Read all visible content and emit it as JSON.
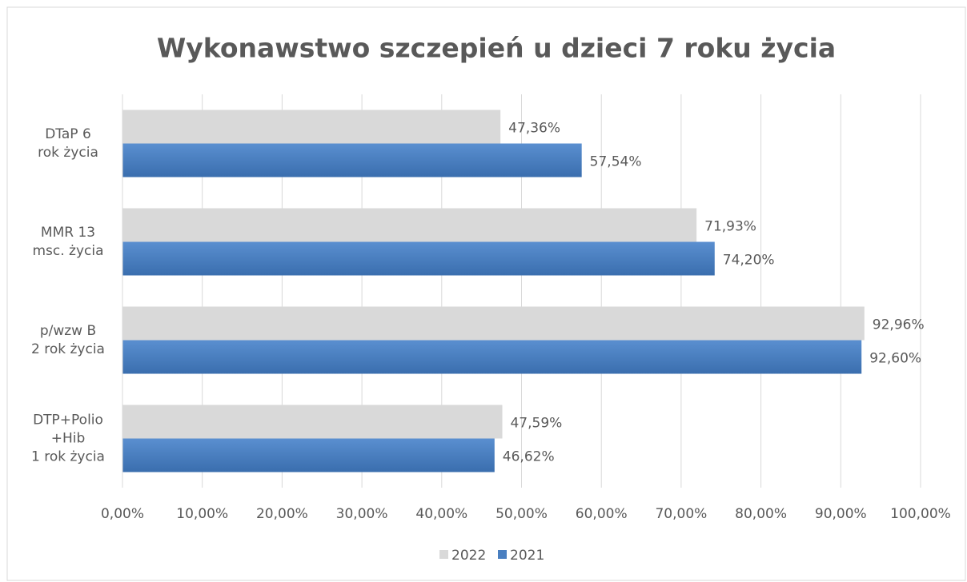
{
  "chart_data": {
    "type": "bar",
    "orientation": "horizontal",
    "title": "Wykonawstwo szczepień u dzieci 7 roku życia",
    "categories": [
      "DTaP 6\nrok życia",
      "MMR 13\nmsc. życia",
      "p/wzw B\n2 rok życia",
      "DTP+Polio\n+Hib\n1 rok życia"
    ],
    "series": [
      {
        "name": "2022",
        "color": "#d9d9d9",
        "values": [
          47.36,
          71.93,
          92.96,
          47.59
        ],
        "value_labels": [
          "47,36%",
          "71,93%",
          "92,96%",
          "47,59%"
        ]
      },
      {
        "name": "2021",
        "color": "#4a7fc0",
        "values": [
          57.54,
          74.2,
          92.6,
          46.62
        ],
        "value_labels": [
          "57,54%",
          "74,20%",
          "92,60%",
          "46,62%"
        ]
      }
    ],
    "xlim": [
      0,
      100
    ],
    "xticks": [
      {
        "value": 0,
        "label": "0,00%"
      },
      {
        "value": 10,
        "label": "10,00%"
      },
      {
        "value": 20,
        "label": "20,00%"
      },
      {
        "value": 30,
        "label": "30,00%"
      },
      {
        "value": 40,
        "label": "40,00%"
      },
      {
        "value": 50,
        "label": "50,00%"
      },
      {
        "value": 60,
        "label": "60,00%"
      },
      {
        "value": 70,
        "label": "70,00%"
      },
      {
        "value": 80,
        "label": "80,00%"
      },
      {
        "value": 90,
        "label": "90,00%"
      },
      {
        "value": 100,
        "label": "100,00%"
      }
    ],
    "grid": true,
    "legend": "bottom"
  }
}
